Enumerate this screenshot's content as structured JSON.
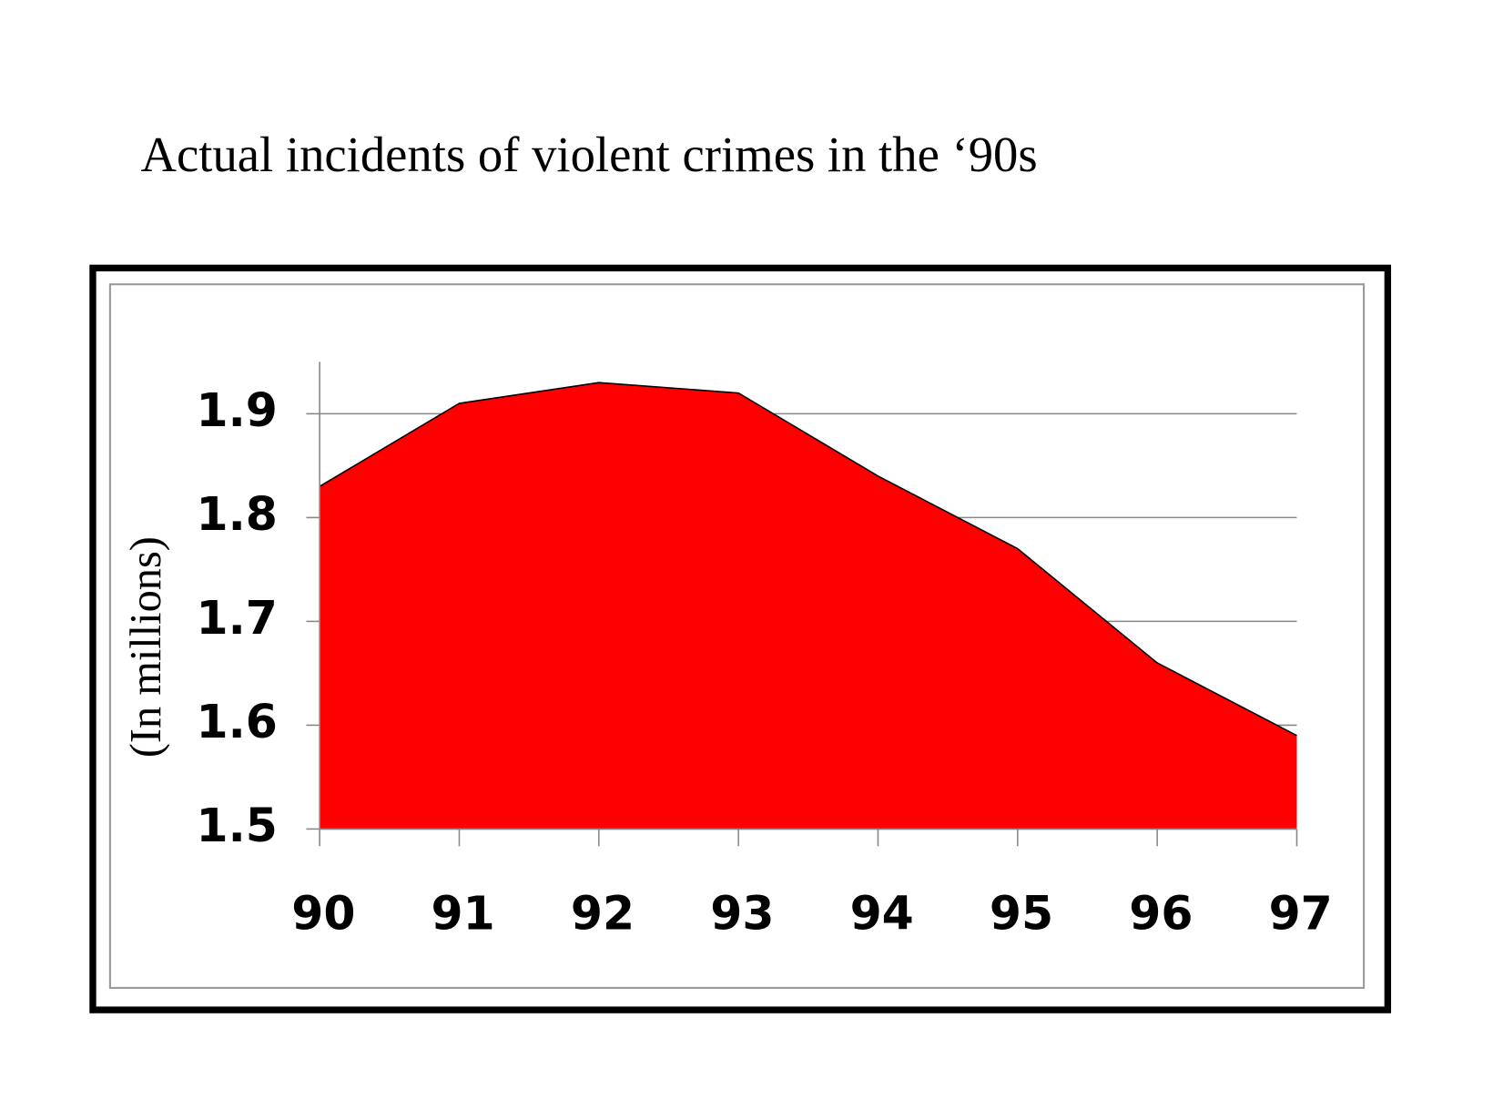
{
  "chart_data": {
    "type": "area",
    "title": "Actual incidents of violent crimes in the ‘90s",
    "y_label": "(In millions)",
    "categories": [
      "90",
      "91",
      "92",
      "93",
      "94",
      "95",
      "96",
      "97"
    ],
    "values": [
      1.83,
      1.91,
      1.93,
      1.92,
      1.84,
      1.77,
      1.66,
      1.59
    ],
    "color": "#ff0000",
    "ylim": [
      1.5,
      1.95
    ],
    "yticks": [
      1.5,
      1.6,
      1.7,
      1.8,
      1.9
    ],
    "grid": true
  }
}
